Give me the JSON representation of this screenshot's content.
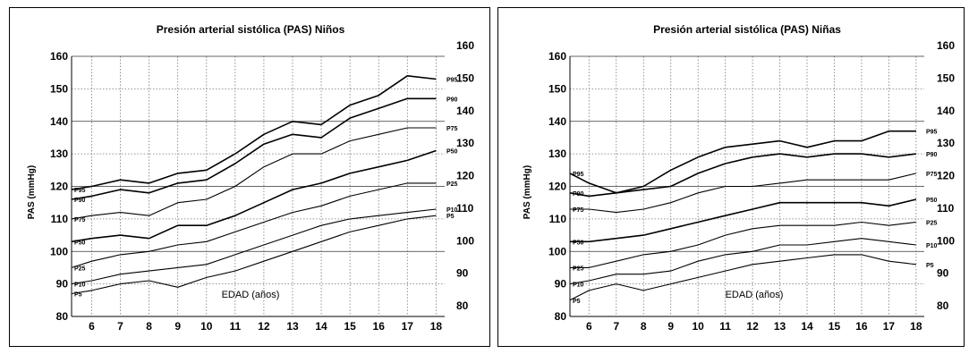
{
  "charts": [
    {
      "id": "ninos",
      "title": "Presión arterial sistólica (PAS) Niños",
      "ylabel": "PAS (mmHg)",
      "xlabel": "EDAD (años)"
    },
    {
      "id": "ninas",
      "title": "Presión arterial sistólica (PAS) Niñas",
      "ylabel": "PAS (mmHg)",
      "xlabel": "EDAD (años)"
    }
  ],
  "chart_data": [
    {
      "type": "line",
      "title": "Presión arterial sistólica (PAS) Niños",
      "xlabel": "EDAD (años)",
      "ylabel": "PAS (mmHg)",
      "x_ticks": [
        6,
        7,
        8,
        9,
        10,
        11,
        12,
        13,
        14,
        15,
        16,
        17,
        18
      ],
      "xlim": [
        5.3,
        18.3
      ],
      "y_ticks_left": [
        80,
        90,
        100,
        110,
        120,
        130,
        140,
        150,
        160
      ],
      "y_ticks_right": [
        80,
        90,
        100,
        110,
        120,
        130,
        140,
        150,
        160
      ],
      "ylim": [
        80,
        160
      ],
      "grid": true,
      "x": [
        5.3,
        6,
        7,
        8,
        9,
        10,
        11,
        12,
        13,
        14,
        15,
        16,
        17,
        18
      ],
      "series": [
        {
          "name": "P95",
          "label_left": "P95",
          "label_right": "P95",
          "values": [
            119,
            120,
            122,
            121,
            124,
            125,
            130,
            136,
            140,
            139,
            145,
            148,
            154,
            153
          ]
        },
        {
          "name": "P90",
          "label_left": "P90",
          "label_right": "P90",
          "values": [
            116,
            117,
            119,
            118,
            121,
            122,
            127,
            133,
            136,
            135,
            141,
            144,
            147,
            147
          ]
        },
        {
          "name": "P75",
          "label_left": "P75",
          "label_right": "P75",
          "values": [
            110,
            111,
            112,
            111,
            115,
            116,
            120,
            126,
            130,
            130,
            134,
            136,
            138,
            138
          ]
        },
        {
          "name": "P50",
          "label_left": "P50",
          "label_right": "P50",
          "values": [
            103,
            104,
            105,
            104,
            108,
            108,
            111,
            115,
            119,
            121,
            124,
            126,
            128,
            131
          ]
        },
        {
          "name": "P25",
          "label_left": "P25",
          "label_right": "P25",
          "values": [
            95,
            97,
            99,
            100,
            102,
            103,
            106,
            109,
            112,
            114,
            117,
            119,
            121,
            121
          ]
        },
        {
          "name": "P10",
          "label_left": "P10",
          "label_right": "P10",
          "values": [
            90,
            91,
            93,
            94,
            95,
            96,
            99,
            102,
            105,
            108,
            110,
            111,
            112,
            113
          ]
        },
        {
          "name": "P5",
          "label_left": "P5",
          "label_right": "P5",
          "values": [
            87,
            88,
            90,
            91,
            89,
            92,
            94,
            97,
            100,
            103,
            106,
            108,
            110,
            111
          ]
        }
      ]
    },
    {
      "type": "line",
      "title": "Presión arterial sistólica (PAS) Niñas",
      "xlabel": "EDAD (años)",
      "ylabel": "PAS (mmHg)",
      "x_ticks": [
        6,
        7,
        8,
        9,
        10,
        11,
        12,
        13,
        14,
        15,
        16,
        17,
        18
      ],
      "xlim": [
        5.3,
        18.3
      ],
      "y_ticks_left": [
        80,
        90,
        100,
        110,
        120,
        130,
        140,
        150,
        160
      ],
      "y_ticks_right": [
        80,
        90,
        100,
        110,
        120,
        130,
        140,
        150,
        160
      ],
      "ylim": [
        80,
        160
      ],
      "grid": true,
      "x": [
        5.3,
        6,
        7,
        8,
        9,
        10,
        11,
        12,
        13,
        14,
        15,
        16,
        17,
        18
      ],
      "series": [
        {
          "name": "P95",
          "label_left": "P95",
          "label_right": "P95",
          "values": [
            124,
            121,
            118,
            120,
            125,
            129,
            132,
            133,
            134,
            132,
            134,
            134,
            137,
            137
          ]
        },
        {
          "name": "P90",
          "label_left": "P90",
          "label_right": "P90",
          "values": [
            118,
            117,
            118,
            119,
            120,
            124,
            127,
            129,
            130,
            129,
            130,
            130,
            129,
            130
          ]
        },
        {
          "name": "P75",
          "label_left": "P75",
          "label_right": "P75",
          "values": [
            113,
            113,
            112,
            113,
            115,
            118,
            120,
            120,
            121,
            122,
            122,
            122,
            122,
            124
          ]
        },
        {
          "name": "P50",
          "label_left": "P50",
          "label_right": "P50",
          "values": [
            103,
            103,
            104,
            105,
            107,
            109,
            111,
            113,
            115,
            115,
            115,
            115,
            114,
            116
          ]
        },
        {
          "name": "P25",
          "label_left": "P25",
          "label_right": "P25",
          "values": [
            95,
            95,
            97,
            99,
            100,
            102,
            105,
            107,
            108,
            108,
            108,
            109,
            108,
            109
          ]
        },
        {
          "name": "P10",
          "label_left": "P10",
          "label_right": "P10",
          "values": [
            90,
            91,
            93,
            93,
            94,
            97,
            99,
            100,
            102,
            102,
            103,
            104,
            103,
            102
          ]
        },
        {
          "name": "P5",
          "label_left": "P5",
          "label_right": "P5",
          "values": [
            85,
            88,
            90,
            88,
            90,
            92,
            94,
            96,
            97,
            98,
            99,
            99,
            97,
            96
          ]
        }
      ]
    }
  ]
}
